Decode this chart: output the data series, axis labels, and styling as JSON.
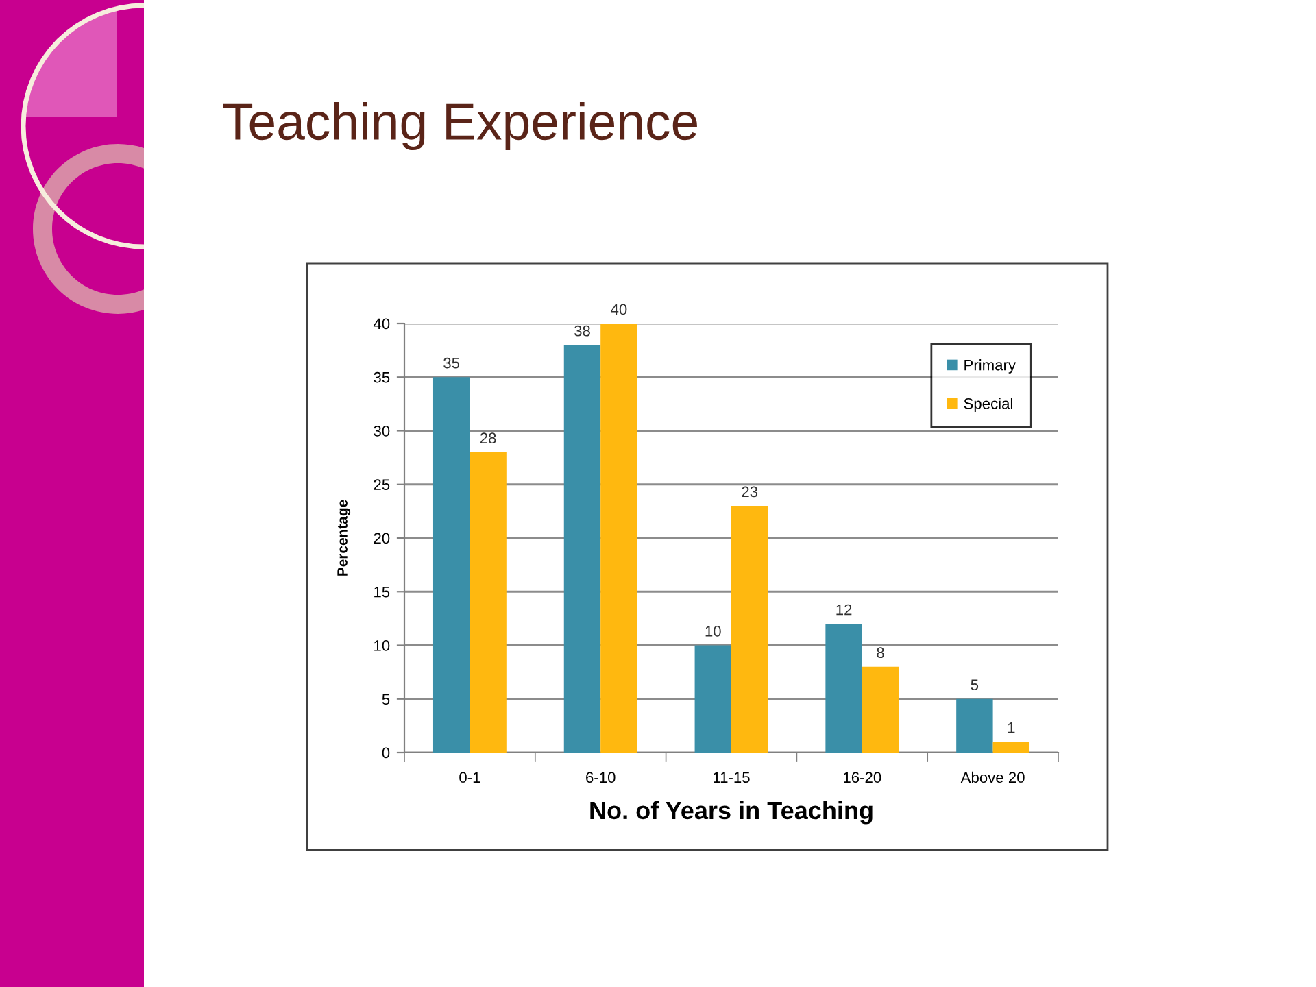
{
  "chart_data": {
    "type": "bar",
    "title": "Teaching Experience",
    "xlabel": "No. of Years in Teaching",
    "ylabel": "Percentage",
    "categories": [
      "0-1",
      "6-10",
      "11-15",
      "16-20",
      "Above 20"
    ],
    "series": [
      {
        "name": "Primary",
        "color": "#3a8fa8",
        "values": [
          35,
          38,
          10,
          12,
          5
        ]
      },
      {
        "name": "Special",
        "color": "#ffb80f",
        "values": [
          28,
          40,
          23,
          8,
          1
        ]
      }
    ],
    "ylim": [
      0,
      40
    ],
    "yticks": [
      0,
      5,
      10,
      15,
      20,
      25,
      30,
      35,
      40
    ],
    "grid": "y",
    "legend": "top right",
    "data_labels": true
  }
}
